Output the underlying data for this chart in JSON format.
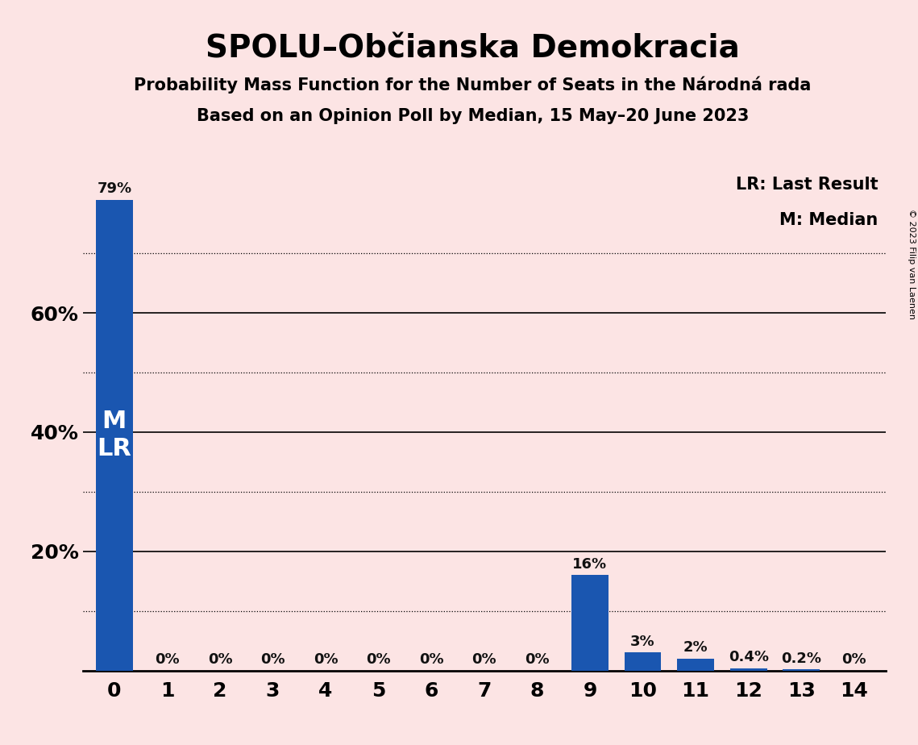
{
  "title": "SPOLU–Občianska Demokracia",
  "subtitle1": "Probability Mass Function for the Number of Seats in the Národná rada",
  "subtitle2": "Based on an Opinion Poll by Median, 15 May–20 June 2023",
  "copyright": "© 2023 Filip van Laenen",
  "legend_lr": "LR: Last Result",
  "legend_m": "M: Median",
  "categories": [
    0,
    1,
    2,
    3,
    4,
    5,
    6,
    7,
    8,
    9,
    10,
    11,
    12,
    13,
    14
  ],
  "values": [
    79,
    0,
    0,
    0,
    0,
    0,
    0,
    0,
    0,
    16,
    3,
    2,
    0.4,
    0.2,
    0
  ],
  "bar_color": "#1a56b0",
  "background_color": "#fce4e4",
  "median_seat": 0,
  "last_result_seat": 0,
  "ylim": [
    0,
    85
  ],
  "solid_yticks": [
    20,
    40,
    60
  ],
  "dotted_yticks": [
    10,
    30,
    50,
    70
  ],
  "text_color_on_bar": "#ffffff",
  "text_color_above_bar": "#111111"
}
